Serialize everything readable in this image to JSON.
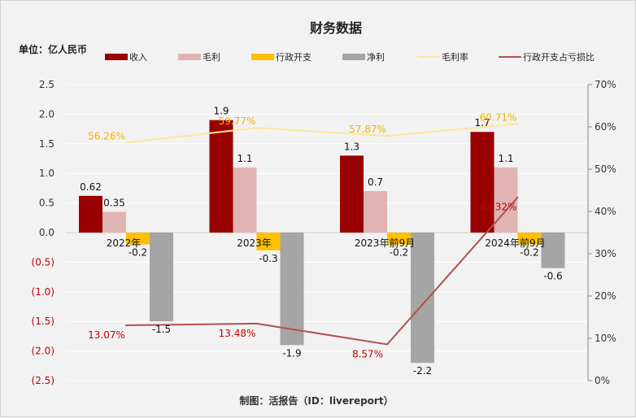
{
  "chart_data": {
    "type": "bar",
    "title": "财务数据",
    "unit_label": "单位：亿人民币",
    "footer": "制图：活报告（ID：livereport）",
    "categories": [
      "2022年",
      "2023年",
      "2023年前9月",
      "2024年前9月"
    ],
    "series": [
      {
        "name": "收入",
        "kind": "bar",
        "axis": "left",
        "values": [
          0.62,
          1.9,
          1.3,
          1.7
        ],
        "labels": [
          "0.62",
          "1.9",
          "1.3",
          "1.7"
        ],
        "color": "#990000"
      },
      {
        "name": "毛利",
        "kind": "bar",
        "axis": "left",
        "values": [
          0.35,
          1.1,
          0.7,
          1.1
        ],
        "labels": [
          "0.35",
          "1.1",
          "0.7",
          "1.1"
        ],
        "color": "#e0b4b4"
      },
      {
        "name": "行政开支",
        "kind": "bar",
        "axis": "left",
        "values": [
          -0.2,
          -0.3,
          -0.2,
          -0.2
        ],
        "labels": [
          "-0.2",
          "-0.3",
          "-0.2",
          "-0.2"
        ],
        "color": "#ffc000"
      },
      {
        "name": "净利",
        "kind": "bar",
        "axis": "left",
        "values": [
          -1.5,
          -1.9,
          -2.2,
          -0.6
        ],
        "labels": [
          "-1.5",
          "-1.9",
          "-2.2",
          "-0.6"
        ],
        "color": "#a5a5a5"
      },
      {
        "name": "毛利率",
        "kind": "line",
        "axis": "right",
        "values": [
          56.26,
          59.77,
          57.87,
          60.71
        ],
        "labels": [
          "56.26%",
          "59.77%",
          "57.87%",
          "60.71%"
        ],
        "color": "#ffe699",
        "label_color": "#f0b400"
      },
      {
        "name": "行政开支占亏损比",
        "kind": "line",
        "axis": "right",
        "values": [
          13.07,
          13.48,
          8.57,
          43.32
        ],
        "labels": [
          "13.07%",
          "13.48%",
          "8.57%",
          "43.32%"
        ],
        "color": "#b05050",
        "label_color": "#c00000"
      }
    ],
    "y_left": {
      "range": [
        -2.5,
        2.5
      ],
      "ticks": [
        "2.5",
        "2.0",
        "1.5",
        "1.0",
        "0.5",
        "0.0",
        "(0.5)",
        "(1.0)",
        "(1.5)",
        "(2.0)",
        "(2.5)"
      ],
      "negative_color": "#c00000"
    },
    "y_right": {
      "range": [
        0,
        70
      ],
      "ticks": [
        "70%",
        "60%",
        "50%",
        "40%",
        "30%",
        "20%",
        "10%",
        "0%"
      ]
    },
    "legend_position": "top",
    "grid": true
  }
}
